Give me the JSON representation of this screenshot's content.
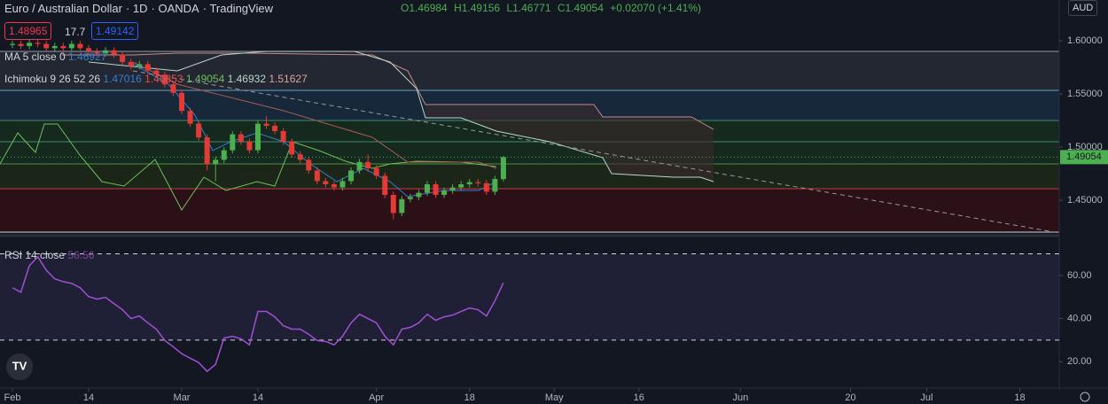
{
  "chart_data": [
    {
      "type": "candlestick",
      "title": "Euro / Australian Dollar",
      "interval": "1D",
      "source": "OANDA",
      "platform": "TradingView",
      "ohlc_labels": [
        "O1.46984",
        "H1.49156",
        "L1.46771",
        "C1.49054",
        "+0.02070 (+1.41%)"
      ],
      "sell": "1.48965",
      "spread": "17.7",
      "buy": "1.49142",
      "indicators": [
        {
          "name": "MA 5 close 0",
          "values": [
            "1.46927"
          ]
        },
        {
          "name": "Ichimoku 9 26 52 26",
          "values": [
            "1.47016",
            "1.46853",
            "1.49054",
            "1.46932",
            "1.51627"
          ]
        }
      ],
      "currency": "AUD",
      "up_color": "#4caf50",
      "down_color": "#e53935",
      "x": [
        0,
        1,
        2,
        3,
        4,
        5,
        6,
        7,
        8,
        9,
        10,
        11,
        12,
        13,
        14,
        15,
        16,
        17,
        18,
        19,
        20,
        21,
        22,
        23,
        24,
        25,
        26,
        27,
        28,
        29,
        30,
        31,
        32,
        33,
        34,
        35,
        36,
        37,
        38,
        39,
        40,
        41,
        42,
        43,
        44,
        45,
        46,
        47,
        48,
        49,
        50,
        51,
        52,
        53,
        54,
        55,
        56,
        57,
        58
      ],
      "open": [
        1.596,
        1.597,
        1.595,
        1.598,
        1.597,
        1.593,
        1.595,
        1.593,
        1.597,
        1.593,
        1.59,
        1.588,
        1.591,
        1.587,
        1.58,
        1.576,
        1.578,
        1.572,
        1.568,
        1.559,
        1.551,
        1.534,
        1.522,
        1.509,
        1.484,
        1.488,
        1.497,
        1.512,
        1.505,
        1.497,
        1.522,
        1.52,
        1.515,
        1.505,
        1.493,
        1.488,
        1.478,
        1.468,
        1.465,
        1.462,
        1.468,
        1.478,
        1.486,
        1.48,
        1.473,
        1.455,
        1.438,
        1.451,
        1.453,
        1.457,
        1.465,
        1.455,
        1.459,
        1.462,
        1.465,
        1.467,
        1.466,
        1.458,
        1.46984
      ],
      "high": [
        1.6,
        1.6,
        1.601,
        1.601,
        1.6,
        1.598,
        1.598,
        1.6,
        1.6,
        1.596,
        1.593,
        1.594,
        1.594,
        1.59,
        1.583,
        1.581,
        1.581,
        1.575,
        1.571,
        1.562,
        1.554,
        1.537,
        1.525,
        1.512,
        1.491,
        1.5,
        1.515,
        1.515,
        1.508,
        1.525,
        1.529,
        1.523,
        1.518,
        1.508,
        1.496,
        1.491,
        1.481,
        1.471,
        1.468,
        1.471,
        1.481,
        1.489,
        1.493,
        1.483,
        1.476,
        1.458,
        1.454,
        1.456,
        1.46,
        1.468,
        1.468,
        1.462,
        1.465,
        1.468,
        1.47,
        1.47,
        1.469,
        1.473,
        1.49156
      ],
      "low": [
        1.593,
        1.592,
        1.592,
        1.594,
        1.59,
        1.59,
        1.59,
        1.59,
        1.59,
        1.587,
        1.585,
        1.585,
        1.584,
        1.577,
        1.573,
        1.573,
        1.569,
        1.565,
        1.556,
        1.548,
        1.531,
        1.519,
        1.506,
        1.478,
        1.468,
        1.485,
        1.494,
        1.502,
        1.494,
        1.494,
        1.517,
        1.512,
        1.502,
        1.49,
        1.485,
        1.475,
        1.465,
        1.462,
        1.459,
        1.459,
        1.465,
        1.475,
        1.477,
        1.47,
        1.452,
        1.432,
        1.435,
        1.448,
        1.45,
        1.454,
        1.452,
        1.452,
        1.456,
        1.459,
        1.462,
        1.463,
        1.455,
        1.455,
        1.46771
      ],
      "close": [
        1.597,
        1.595,
        1.598,
        1.597,
        1.593,
        1.595,
        1.593,
        1.597,
        1.593,
        1.59,
        1.588,
        1.591,
        1.587,
        1.58,
        1.576,
        1.578,
        1.572,
        1.568,
        1.559,
        1.551,
        1.534,
        1.522,
        1.509,
        1.484,
        1.488,
        1.497,
        1.512,
        1.505,
        1.497,
        1.522,
        1.52,
        1.515,
        1.505,
        1.493,
        1.488,
        1.478,
        1.468,
        1.465,
        1.462,
        1.468,
        1.478,
        1.486,
        1.48,
        1.473,
        1.455,
        1.438,
        1.451,
        1.453,
        1.457,
        1.465,
        1.455,
        1.459,
        1.462,
        1.465,
        1.467,
        1.466,
        1.458,
        1.47,
        1.49054
      ],
      "xlim": [
        -1.466,
        123.66
      ],
      "xticks": [
        {
          "value": 0,
          "label": "Feb"
        },
        {
          "value": 9,
          "label": "14"
        },
        {
          "value": 20,
          "label": "Mar"
        },
        {
          "value": 29,
          "label": "14"
        },
        {
          "value": 43,
          "label": "Apr"
        },
        {
          "value": 54,
          "label": "18"
        },
        {
          "value": 64,
          "label": "May"
        },
        {
          "value": 74,
          "label": "16"
        },
        {
          "value": 86,
          "label": "Jun"
        },
        {
          "value": 99,
          "label": "20"
        },
        {
          "value": 108,
          "label": "Jul"
        },
        {
          "value": 119,
          "label": "18"
        }
      ],
      "ylim": [
        1.4175,
        1.6383
      ],
      "yticks": [
        {
          "value": 1.45,
          "label": "1.45000"
        },
        {
          "value": 1.5,
          "label": "1.50000"
        },
        {
          "value": 1.55,
          "label": "1.55000"
        },
        {
          "value": 1.6,
          "label": "1.60000"
        }
      ]
    },
    {
      "type": "line",
      "title": "RSI 14 close",
      "color": "#a24fd6",
      "values": [
        54.3,
        52.2,
        64.5,
        68.6,
        62.4,
        58.4,
        57.1,
        56.3,
        54.3,
        50.2,
        49,
        49.8,
        46.9,
        44.1,
        40,
        41.2,
        38,
        35.1,
        29.8,
        26.9,
        23.7,
        21.6,
        19.6,
        15.5,
        18.8,
        31,
        31.8,
        30.6,
        27.8,
        43.3,
        43.3,
        40.8,
        36.7,
        35.1,
        35.1,
        32.7,
        29.8,
        29.4,
        27.8,
        31.8,
        38,
        42,
        40,
        38,
        31.8,
        27.8,
        35.1,
        35.9,
        38,
        42,
        39.2,
        40.8,
        41.6,
        43.3,
        44.9,
        44.1,
        41.2,
        48.2,
        56.56
      ],
      "bands": [
        70,
        30
      ],
      "ylim": [
        8.6,
        77.6
      ],
      "yticks": [
        {
          "value": 20,
          "label": "20.00"
        },
        {
          "value": 40,
          "label": "40.00"
        },
        {
          "value": 60,
          "label": "60.00"
        }
      ]
    }
  ]
}
